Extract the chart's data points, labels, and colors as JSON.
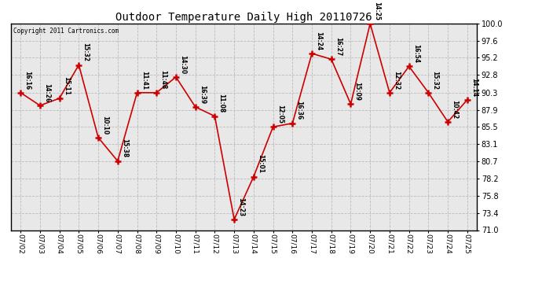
{
  "title": "Outdoor Temperature Daily High 20110726",
  "copyright_text": "Copyright 2011 Cartronics.com",
  "x_labels": [
    "07/02",
    "07/03",
    "07/04",
    "07/05",
    "07/06",
    "07/07",
    "07/08",
    "07/09",
    "07/10",
    "07/11",
    "07/12",
    "07/13",
    "07/14",
    "07/15",
    "07/16",
    "07/17",
    "07/18",
    "07/19",
    "07/20",
    "07/21",
    "07/22",
    "07/23",
    "07/24",
    "07/25"
  ],
  "y_values": [
    90.3,
    88.5,
    89.5,
    94.2,
    84.0,
    80.7,
    90.3,
    90.3,
    92.5,
    88.3,
    87.0,
    72.5,
    78.5,
    85.5,
    86.0,
    95.8,
    95.0,
    88.7,
    100.0,
    90.3,
    94.0,
    90.3,
    86.2,
    89.3
  ],
  "time_labels": [
    "16:16",
    "14:26",
    "15:11",
    "15:32",
    "10:10",
    "15:38",
    "11:41",
    "11:48",
    "14:30",
    "16:39",
    "11:08",
    "14:23",
    "15:01",
    "12:05",
    "16:36",
    "14:24",
    "16:27",
    "15:09",
    "14:25",
    "12:32",
    "16:54",
    "15:32",
    "10:42",
    "14:14"
  ],
  "line_color": "#cc0000",
  "marker_color": "#cc0000",
  "background_color": "#e8e8e8",
  "grid_color": "#bbbbbb",
  "y_min": 71.0,
  "y_max": 100.0,
  "y_ticks": [
    71.0,
    73.4,
    75.8,
    78.2,
    80.7,
    83.1,
    85.5,
    87.9,
    90.3,
    92.8,
    95.2,
    97.6,
    100.0
  ]
}
